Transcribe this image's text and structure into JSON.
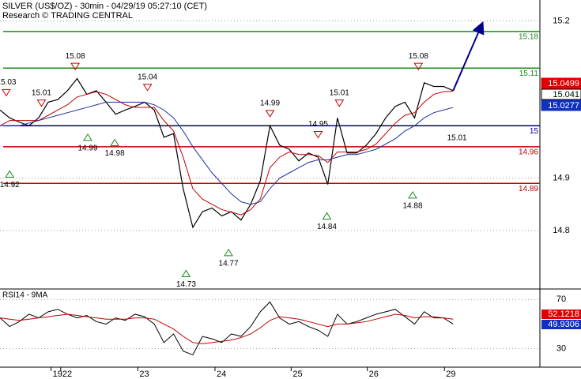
{
  "chart_data": {
    "type": "line",
    "title": "SILVER (US$/OZ) - 30min - 04/29/19 05:27:10 (CET)",
    "subtitle": "Research © TRADING CENTRAL",
    "x": [
      0,
      1,
      2,
      3,
      4,
      5,
      6,
      7,
      8,
      9,
      10,
      11,
      12,
      13,
      14,
      15,
      16,
      17,
      18,
      19,
      20,
      21,
      22,
      23,
      24,
      25,
      26,
      27,
      28,
      29,
      30,
      31,
      32,
      33,
      34,
      35,
      36,
      37,
      38,
      39,
      40,
      41,
      42,
      43,
      44,
      45,
      46,
      47
    ],
    "xlim": [
      0,
      56
    ],
    "xticks": [
      {
        "value": 5.3,
        "label": "19"
      },
      {
        "value": 6.3,
        "label": "22"
      },
      {
        "value": 14.3,
        "label": "23"
      },
      {
        "value": 22.3,
        "label": "24"
      },
      {
        "value": 30.2,
        "label": "25"
      },
      {
        "value": 38.1,
        "label": "26"
      },
      {
        "value": 46.1,
        "label": "29"
      }
    ],
    "ylim": [
      14.69,
      15.24
    ],
    "yticks": [
      14.8,
      14.9,
      15.2
    ],
    "grid": true,
    "series": [
      {
        "color": "#000000",
        "values": [
          15.03,
          15.015,
          15.007,
          15.0,
          15.015,
          15.045,
          15.05,
          15.067,
          15.09,
          15.06,
          15.067,
          15.045,
          15.022,
          15.03,
          15.037,
          15.045,
          15.03,
          14.978,
          14.985,
          14.88,
          14.806,
          14.836,
          14.843,
          14.828,
          14.836,
          14.82,
          14.85,
          14.895,
          15.0,
          14.963,
          14.955,
          14.933,
          14.948,
          14.94,
          14.888,
          15.015,
          14.948,
          14.948,
          14.963,
          14.985,
          15.015,
          15.037,
          15.045,
          15.015,
          15.082,
          15.075,
          15.075,
          15.067
        ]
      },
      {
        "color": "#c00000",
        "values": [
          15.0,
          15.01,
          15.01,
          15.01,
          15.01,
          15.02,
          15.03,
          15.04,
          15.055,
          15.06,
          15.065,
          15.06,
          15.05,
          15.04,
          15.035,
          15.035,
          15.035,
          15.01,
          14.99,
          14.94,
          14.88,
          14.86,
          14.85,
          14.84,
          14.835,
          14.83,
          14.84,
          14.86,
          14.92,
          14.94,
          14.95,
          14.945,
          14.945,
          14.943,
          14.93,
          14.95,
          14.95,
          14.95,
          14.955,
          14.965,
          14.985,
          15.005,
          15.02,
          15.025,
          15.045,
          15.06,
          15.065,
          15.066
        ]
      },
      {
        "color": "#2030a0",
        "values": [
          15.0,
          15.0,
          15.0,
          15.005,
          15.01,
          15.015,
          15.02,
          15.025,
          15.03,
          15.035,
          15.04,
          15.045,
          15.045,
          15.045,
          15.045,
          15.045,
          15.04,
          15.03,
          15.015,
          14.99,
          14.96,
          14.935,
          14.91,
          14.89,
          14.87,
          14.855,
          14.85,
          14.855,
          14.88,
          14.9,
          14.91,
          14.92,
          14.93,
          14.935,
          14.935,
          14.94,
          14.945,
          14.945,
          14.95,
          14.955,
          14.965,
          14.975,
          14.99,
          15.0,
          15.015,
          15.025,
          15.03,
          15.035
        ]
      }
    ],
    "projection": {
      "color": "#00008b",
      "x": [
        47,
        50
      ],
      "values": [
        15.067,
        15.194
      ]
    },
    "levels": [
      {
        "value": 15.18,
        "color": "#1a8a1a"
      },
      {
        "value": 15.11,
        "color": "#1a8a1a"
      },
      {
        "value": 15,
        "color": "#00008b"
      },
      {
        "value": 14.96,
        "color": "#c00000"
      },
      {
        "value": 14.89,
        "color": "#c00000"
      }
    ],
    "price_tags": [
      {
        "value": 15.0499,
        "color": "#e00000"
      },
      {
        "value": 15.041,
        "color": "#000000"
      },
      {
        "value": 15.0277,
        "color": "#1030c0"
      }
    ],
    "markers": [
      {
        "kind": "high",
        "x": 0.65,
        "value": 15.03
      },
      {
        "kind": "high",
        "x": 4.3,
        "value": 15.01
      },
      {
        "kind": "high",
        "x": 7.8,
        "value": 15.08
      },
      {
        "kind": "high",
        "x": 15.3,
        "value": 15.04
      },
      {
        "kind": "low",
        "x": 9.1,
        "value": 14.99
      },
      {
        "kind": "low",
        "x": 11.9,
        "value": 14.98
      },
      {
        "kind": "low",
        "x": 1,
        "value": 14.92
      },
      {
        "kind": "low",
        "x": 19.3,
        "value": 14.73
      },
      {
        "kind": "low",
        "x": 23.7,
        "value": 14.77
      },
      {
        "kind": "high",
        "x": 28,
        "value": 14.99
      },
      {
        "kind": "high",
        "x": 33,
        "value": 14.95
      },
      {
        "kind": "low",
        "x": 33.9,
        "value": 14.84
      },
      {
        "kind": "high",
        "x": 35.2,
        "value": 15.01
      },
      {
        "kind": "low",
        "x": 42.8,
        "value": 14.88
      },
      {
        "kind": "high",
        "x": 43.4,
        "value": 15.08
      },
      {
        "kind": "label",
        "x": 47.4,
        "value": 15.01
      }
    ],
    "rsi": {
      "label": "RSI14 - 9MA",
      "ylim": [
        15,
        78.5
      ],
      "yticks": [
        30,
        70
      ],
      "series": [
        {
          "color": "#000000",
          "values": [
            55,
            48,
            52,
            58,
            55,
            60,
            62,
            58,
            55,
            57,
            52,
            50,
            55,
            53,
            58,
            56,
            50,
            35,
            42,
            28,
            25,
            40,
            38,
            35,
            42,
            40,
            48,
            60,
            68,
            55,
            50,
            52,
            48,
            45,
            40,
            58,
            50,
            52,
            55,
            58,
            60,
            62,
            56,
            50,
            60,
            55,
            55,
            50
          ]
        },
        {
          "color": "#c00000",
          "values": [
            55,
            54,
            53,
            54,
            55,
            56,
            57,
            58,
            57,
            56,
            55,
            54,
            54,
            54,
            55,
            55,
            54,
            50,
            46,
            40,
            35,
            34,
            35,
            36,
            37,
            39,
            42,
            47,
            53,
            56,
            55,
            54,
            52,
            50,
            48,
            50,
            50,
            51,
            52,
            54,
            56,
            58,
            57,
            55,
            56,
            56,
            55,
            54
          ]
        }
      ],
      "tags": [
        {
          "value": 52.1218,
          "color": "#e00000"
        },
        {
          "value": 49.9306,
          "color": "#1030c0"
        }
      ]
    }
  }
}
